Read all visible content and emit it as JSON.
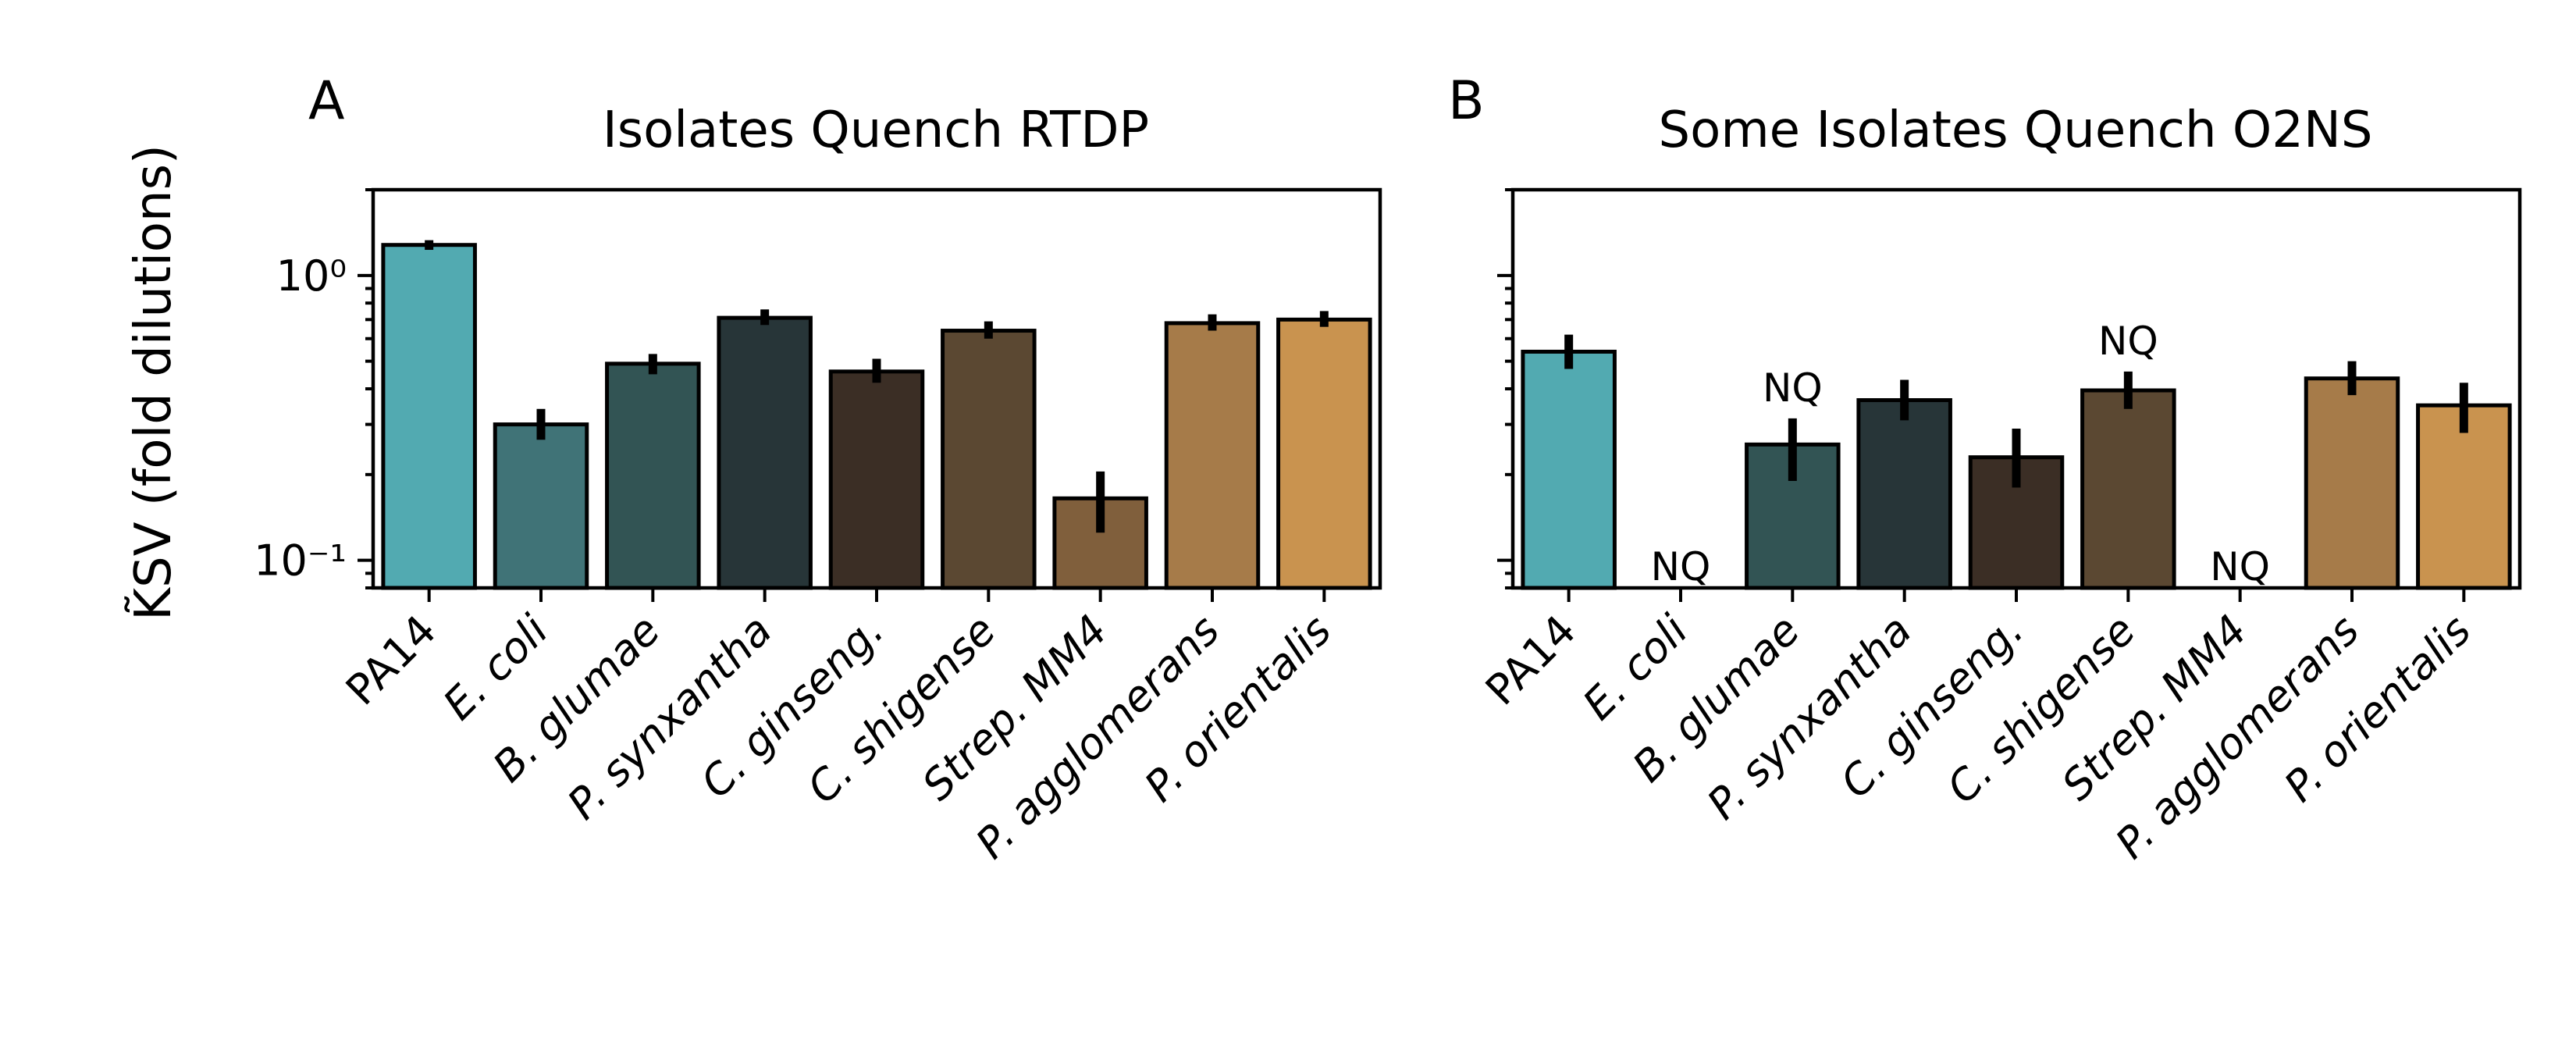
{
  "chart_data": [
    {
      "type": "bar",
      "panel_label": "A",
      "title": "Isolates Quench RTDP",
      "ylabel": "K̃SV (fold dilutions)",
      "yscale": "log",
      "ylim": [
        0.08,
        2.0
      ],
      "yticks": [
        {
          "value": 0.1,
          "label": "10⁻¹"
        },
        {
          "value": 1.0,
          "label": "10⁰"
        }
      ],
      "categories": [
        "PA14",
        "E. coli",
        "B. glumae",
        "P. synxantha",
        "C. ginseng.",
        "C. shigense",
        "Strep. MM4",
        "P. agglomerans",
        "P. orientalis"
      ],
      "values": [
        1.28,
        0.3,
        0.49,
        0.71,
        0.46,
        0.64,
        0.165,
        0.68,
        0.7
      ],
      "err_low": [
        1.23,
        0.265,
        0.45,
        0.67,
        0.42,
        0.6,
        0.125,
        0.64,
        0.66
      ],
      "err_high": [
        1.33,
        0.34,
        0.53,
        0.76,
        0.51,
        0.69,
        0.205,
        0.73,
        0.75
      ],
      "annotations": [
        "",
        "",
        "",
        "",
        "",
        "",
        "",
        "",
        ""
      ],
      "colors": [
        "#52aab1",
        "#407377",
        "#325454",
        "#273538",
        "#3b2e25",
        "#5b4832",
        "#805f3c",
        "#a67b49",
        "#c9934f"
      ],
      "grid": false
    },
    {
      "type": "bar",
      "panel_label": "B",
      "title": "Some Isolates Quench O2NS",
      "ylabel": "",
      "yscale": "log",
      "ylim": [
        0.08,
        2.0
      ],
      "categories": [
        "PA14",
        "E. coli",
        "B. glumae",
        "P. synxantha",
        "C. ginseng.",
        "C. shigense",
        "Strep. MM4",
        "P. agglomerans",
        "P. orientalis"
      ],
      "values": [
        0.54,
        null,
        0.255,
        0.365,
        0.23,
        0.395,
        null,
        0.435,
        0.35
      ],
      "err_low": [
        0.47,
        null,
        0.19,
        0.31,
        0.18,
        0.34,
        null,
        0.38,
        0.28
      ],
      "err_high": [
        0.62,
        null,
        0.315,
        0.43,
        0.29,
        0.46,
        null,
        0.5,
        0.42
      ],
      "annotations": [
        "",
        "NQ",
        "NQ",
        "",
        "",
        "NQ",
        "NQ",
        "",
        ""
      ],
      "colors": [
        "#52aab1",
        "#407377",
        "#325454",
        "#273538",
        "#3b2e25",
        "#5b4832",
        "#805f3c",
        "#a67b49",
        "#c9934f"
      ],
      "grid": false
    }
  ]
}
